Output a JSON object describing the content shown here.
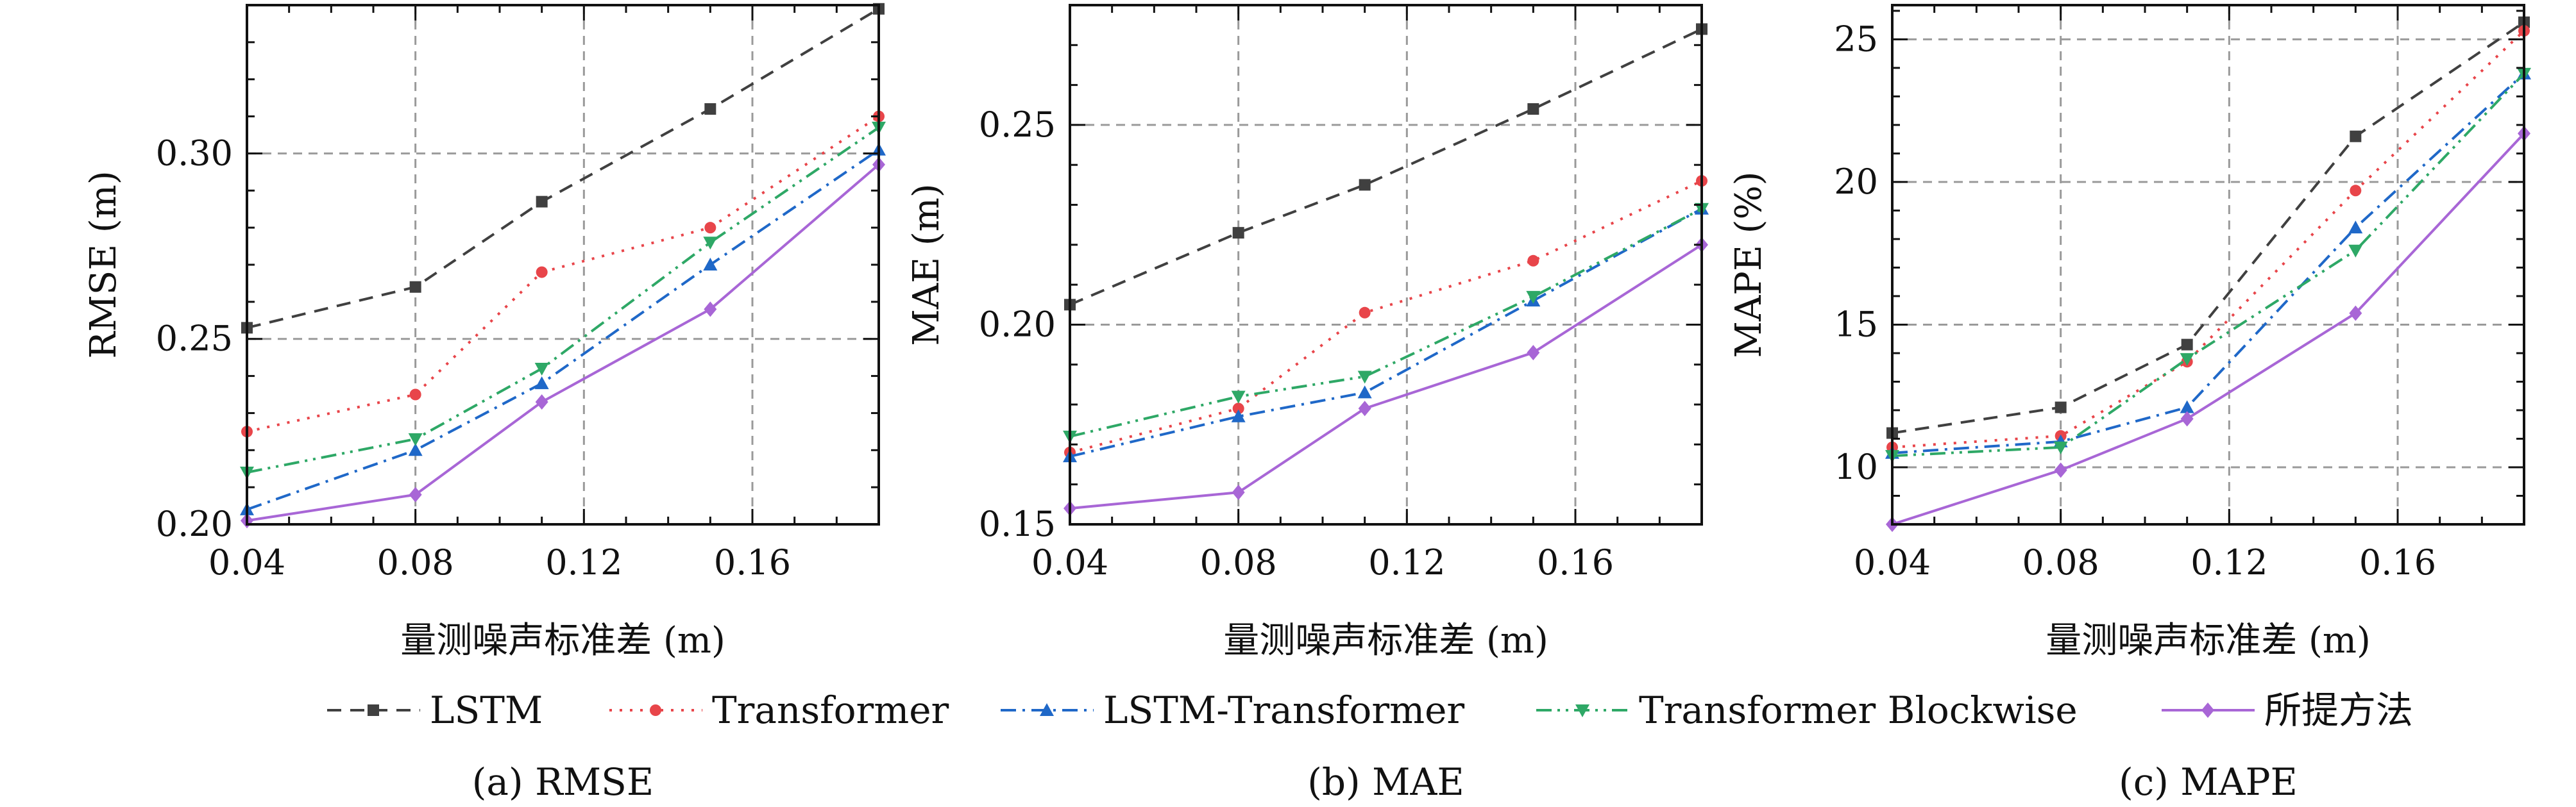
{
  "legend": [
    {
      "name": "LSTM",
      "color": "#404040",
      "dash": "dashed",
      "marker": "square"
    },
    {
      "name": "Transformer",
      "color": "#e8454a",
      "dash": "dotted",
      "marker": "circle"
    },
    {
      "name": "LSTM-Transformer",
      "color": "#1f68c8",
      "dash": "dashdot",
      "marker": "triangle-up"
    },
    {
      "name": "Transformer Blockwise",
      "color": "#2ea866",
      "dash": "dashdotdot",
      "marker": "triangle-down"
    },
    {
      "name": "所提方法",
      "color": "#a866d6",
      "dash": "solid",
      "marker": "diamond"
    }
  ],
  "chart_data": [
    {
      "type": "line",
      "caption": "(a) RMSE",
      "xlabel": "量测噪声标准差 (m)",
      "ylabel": "RMSE (m)",
      "x": [
        0.04,
        0.08,
        0.11,
        0.15,
        0.19
      ],
      "xlim": [
        0.04,
        0.19
      ],
      "ylim": [
        0.2,
        0.34
      ],
      "xticks": [
        0.04,
        0.08,
        0.12,
        0.16
      ],
      "xtick_labels": [
        "0.04",
        "0.08",
        "0.12",
        "0.16"
      ],
      "yticks": [
        0.2,
        0.25,
        0.3
      ],
      "ytick_labels": [
        "0.20",
        "0.25",
        "0.30"
      ],
      "grid": true,
      "series": [
        {
          "name": "LSTM",
          "values": [
            0.253,
            0.264,
            0.287,
            0.312,
            0.339
          ]
        },
        {
          "name": "Transformer",
          "values": [
            0.225,
            0.235,
            0.268,
            0.28,
            0.31
          ]
        },
        {
          "name": "LSTM-Transformer",
          "values": [
            0.204,
            0.22,
            0.238,
            0.27,
            0.301
          ]
        },
        {
          "name": "Transformer Blockwise",
          "values": [
            0.214,
            0.223,
            0.242,
            0.276,
            0.307
          ]
        },
        {
          "name": "所提方法",
          "values": [
            0.201,
            0.208,
            0.233,
            0.258,
            0.297
          ]
        }
      ]
    },
    {
      "type": "line",
      "caption": "(b) MAE",
      "xlabel": "量测噪声标准差 (m)",
      "ylabel": "MAE (m)",
      "x": [
        0.04,
        0.08,
        0.11,
        0.15,
        0.19
      ],
      "xlim": [
        0.04,
        0.19
      ],
      "ylim": [
        0.15,
        0.28
      ],
      "xticks": [
        0.04,
        0.08,
        0.12,
        0.16
      ],
      "xtick_labels": [
        "0.04",
        "0.08",
        "0.12",
        "0.16"
      ],
      "yticks": [
        0.15,
        0.2,
        0.25
      ],
      "ytick_labels": [
        "0.15",
        "0.20",
        "0.25"
      ],
      "grid": true,
      "series": [
        {
          "name": "LSTM",
          "values": [
            0.205,
            0.223,
            0.235,
            0.254,
            0.274
          ]
        },
        {
          "name": "Transformer",
          "values": [
            0.168,
            0.179,
            0.203,
            0.216,
            0.236
          ]
        },
        {
          "name": "LSTM-Transformer",
          "values": [
            0.167,
            0.177,
            0.183,
            0.206,
            0.229
          ]
        },
        {
          "name": "Transformer Blockwise",
          "values": [
            0.172,
            0.182,
            0.187,
            0.207,
            0.229
          ]
        },
        {
          "name": "所提方法",
          "values": [
            0.154,
            0.158,
            0.179,
            0.193,
            0.22
          ]
        }
      ]
    },
    {
      "type": "line",
      "caption": "(c) MAPE",
      "xlabel": "量测噪声标准差 (m)",
      "ylabel": "MAPE (%)",
      "x": [
        0.04,
        0.08,
        0.11,
        0.15,
        0.19
      ],
      "xlim": [
        0.04,
        0.19
      ],
      "ylim": [
        8.0,
        26.2
      ],
      "xticks": [
        0.04,
        0.08,
        0.12,
        0.16
      ],
      "xtick_labels": [
        "0.04",
        "0.08",
        "0.12",
        "0.16"
      ],
      "yticks": [
        10,
        15,
        20,
        25
      ],
      "ytick_labels": [
        "10",
        "15",
        "20",
        "25"
      ],
      "grid": true,
      "series": [
        {
          "name": "LSTM",
          "values": [
            11.2,
            12.1,
            14.3,
            21.6,
            25.6
          ]
        },
        {
          "name": "Transformer",
          "values": [
            10.7,
            11.1,
            13.7,
            19.7,
            25.3
          ]
        },
        {
          "name": "LSTM-Transformer",
          "values": [
            10.5,
            10.9,
            12.1,
            18.4,
            23.8
          ]
        },
        {
          "name": "Transformer Blockwise",
          "values": [
            10.4,
            10.7,
            13.8,
            17.6,
            23.8
          ]
        },
        {
          "name": "所提方法",
          "values": [
            8.0,
            9.9,
            11.7,
            15.4,
            21.7
          ]
        }
      ]
    }
  ]
}
